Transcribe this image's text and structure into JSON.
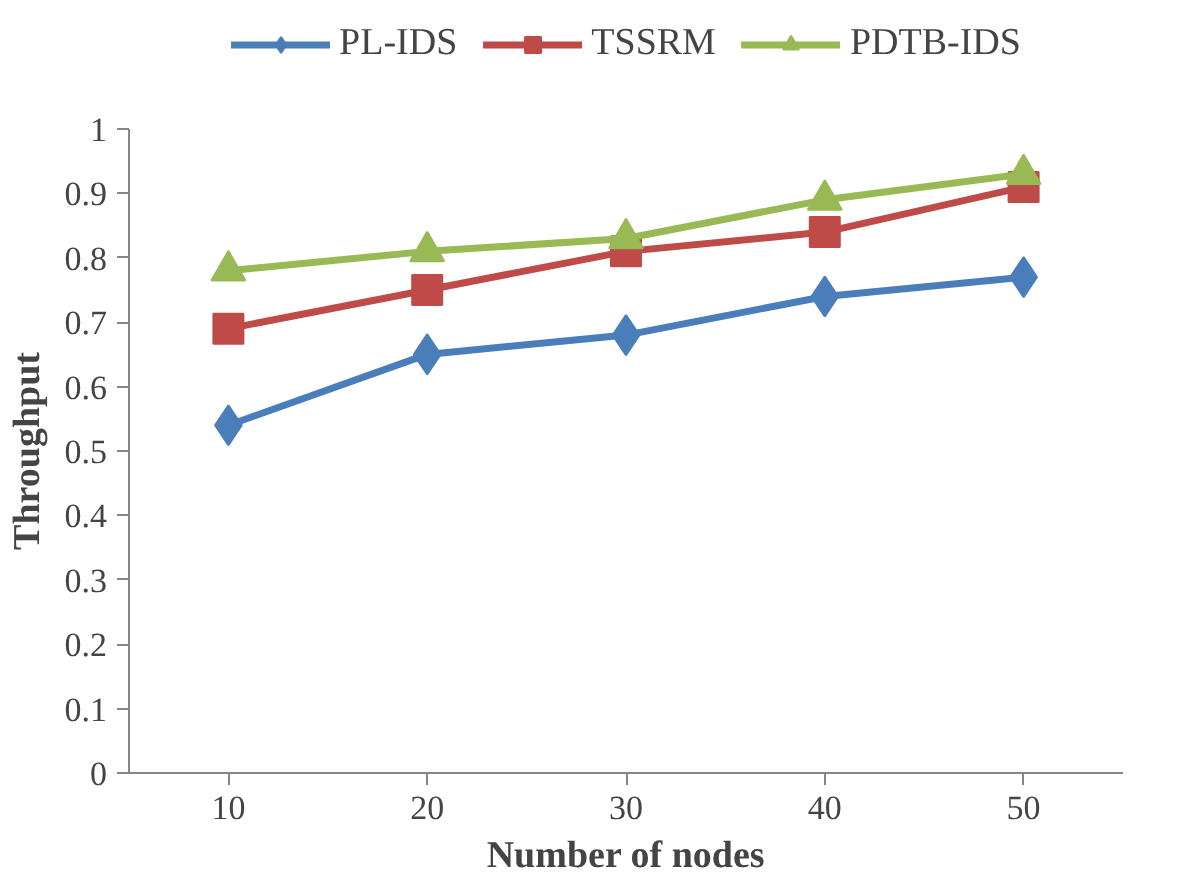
{
  "chart_data": {
    "type": "line",
    "xlabel": "Number of nodes",
    "ylabel": "Throughput",
    "categories": [
      "10",
      "20",
      "30",
      "40",
      "50"
    ],
    "ylim": [
      0,
      1
    ],
    "yticks": [
      0,
      0.1,
      0.2,
      0.3,
      0.4,
      0.5,
      0.6,
      0.7,
      0.8,
      0.9,
      1
    ],
    "grid": false,
    "legend": "top",
    "line_style": "solid",
    "series": [
      {
        "name": "PL-IDS",
        "color": "#4a7ebb",
        "marker": "diamond",
        "values": [
          0.54,
          0.65,
          0.68,
          0.74,
          0.77
        ]
      },
      {
        "name": "TSSRM",
        "color": "#be4b48",
        "marker": "square",
        "values": [
          0.69,
          0.75,
          0.81,
          0.84,
          0.91
        ]
      },
      {
        "name": "PDTB-IDS",
        "color": "#98b954",
        "marker": "triangle",
        "values": [
          0.78,
          0.81,
          0.83,
          0.89,
          0.93
        ]
      }
    ]
  }
}
